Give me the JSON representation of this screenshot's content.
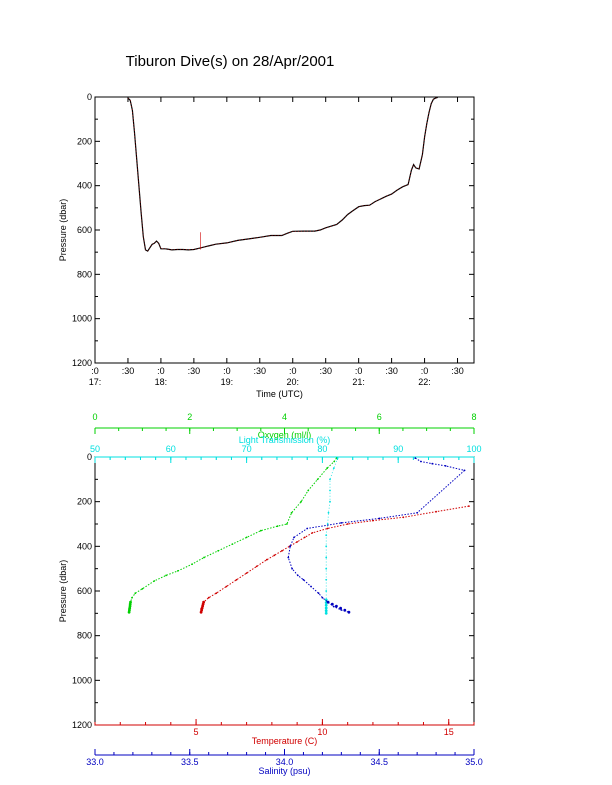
{
  "chart_data": [
    {
      "type": "line",
      "title": "Tiburon Dive(s) on 28/Apr/2001",
      "xlabel": "Time (UTC)",
      "ylabel": "Pressure (dbar)",
      "xlim": [
        "17:00",
        "22:45"
      ],
      "ylim": [
        1200,
        0
      ],
      "x_tick_labels_top": [
        ":0",
        ":30",
        ":0",
        ":30",
        ":0",
        ":30",
        ":0",
        ":30",
        ":0",
        ":30",
        ":0",
        ":30"
      ],
      "x_tick_labels_bottom": [
        "17:",
        "18:",
        "19:",
        "20:",
        "21:",
        "22:"
      ],
      "y_tick_labels": [
        "0",
        "200",
        "400",
        "600",
        "800",
        "1000",
        "1200"
      ],
      "grid": false,
      "series": [
        {
          "x": [
            "17:30",
            "17:32",
            "17:34",
            "17:36",
            "17:38",
            "17:40",
            "17:42",
            "17:44",
            "17:46",
            "17:48",
            "17:50",
            "17:52",
            "17:54",
            "17:56",
            "17:58",
            "18:00",
            "18:02",
            "18:04",
            "18:06",
            "18:08",
            "18:10",
            "18:15",
            "18:20",
            "18:25",
            "18:30",
            "18:35",
            "18:40",
            "18:45",
            "18:50",
            "19:00",
            "19:10",
            "19:20",
            "19:30",
            "19:40",
            "19:50",
            "19:55",
            "20:00",
            "20:10",
            "20:20",
            "20:25",
            "20:30",
            "20:40",
            "20:45",
            "20:50",
            "20:55",
            "21:00",
            "21:05",
            "21:10",
            "21:15",
            "21:20",
            "21:25",
            "21:30",
            "21:35",
            "21:40",
            "21:45",
            "21:48",
            "21:50",
            "21:52",
            "21:55",
            "21:58",
            "22:00",
            "22:02",
            "22:04",
            "22:06",
            "22:08",
            "22:10",
            "22:12"
          ],
          "y": [
            5,
            15,
            60,
            160,
            280,
            400,
            520,
            630,
            690,
            695,
            680,
            665,
            660,
            650,
            660,
            685,
            685,
            685,
            686,
            688,
            690,
            688,
            688,
            690,
            688,
            682,
            676,
            670,
            664,
            658,
            647,
            640,
            633,
            625,
            625,
            615,
            606,
            605,
            605,
            600,
            590,
            575,
            555,
            530,
            512,
            495,
            490,
            488,
            472,
            460,
            448,
            438,
            420,
            405,
            395,
            330,
            305,
            320,
            325,
            260,
            180,
            120,
            70,
            30,
            10,
            5,
            2
          ]
        }
      ]
    },
    {
      "type": "scatter",
      "ylabel": "Pressure (dbar)",
      "ylim": [
        1200,
        0
      ],
      "y_tick_labels": [
        "0",
        "200",
        "400",
        "600",
        "800",
        "1000",
        "1200"
      ],
      "grid": false,
      "x_axes": [
        {
          "label": "Oxygen (ml/l)",
          "color": "#00d000",
          "range": [
            0,
            8
          ],
          "tick_labels": [
            "0",
            "2",
            "4",
            "6",
            "8"
          ]
        },
        {
          "label": "Light Transmission (%)",
          "color": "#00e0e0",
          "range": [
            50,
            100
          ],
          "tick_labels": [
            "50",
            "60",
            "70",
            "80",
            "90",
            "100"
          ]
        },
        {
          "label": "Temperature (C)",
          "color": "#d00000",
          "range": [
            1,
            16
          ],
          "tick_labels": [
            "5",
            "10",
            "15"
          ]
        },
        {
          "label": "Salinity (psu)",
          "color": "#0000c0",
          "range": [
            33.0,
            35.0
          ],
          "tick_labels": [
            "33.0",
            "33.5",
            "34.0",
            "34.5",
            "35.0"
          ]
        }
      ],
      "series": [
        {
          "name": "Oxygen (ml/l)",
          "x": [
            5.1,
            5.05,
            4.9,
            4.7,
            4.5,
            4.35,
            4.15,
            4.05,
            3.85,
            3.5,
            3.2,
            2.9,
            2.6,
            2.3,
            2.05,
            1.75,
            1.5,
            1.25,
            1.0,
            0.85,
            0.78,
            0.75,
            0.74,
            0.72,
            0.72
          ],
          "y": [
            5,
            20,
            50,
            100,
            150,
            200,
            250,
            300,
            310,
            330,
            360,
            390,
            420,
            450,
            480,
            510,
            530,
            555,
            590,
            610,
            630,
            650,
            665,
            680,
            695
          ]
        },
        {
          "name": "Light Transmission (%)",
          "x": [
            82,
            81.5,
            81,
            81,
            81,
            80.8,
            80.7,
            80.5,
            80.5,
            80.5,
            80.5,
            80.5,
            80.5,
            80.5,
            80.5,
            80.5,
            80.5
          ],
          "y": [
            5,
            50,
            100,
            150,
            200,
            250,
            300,
            350,
            400,
            450,
            500,
            550,
            600,
            640,
            660,
            680,
            700
          ]
        },
        {
          "name": "Temperature (C)",
          "x": [
            15.8,
            14.5,
            13.2,
            12.0,
            11.0,
            10.2,
            9.6,
            9.3,
            9.0,
            8.7,
            8.4,
            8.1,
            7.8,
            7.4,
            7.0,
            6.6,
            6.2,
            5.8,
            5.5,
            5.3,
            5.25,
            5.2,
            5.2
          ],
          "y": [
            220,
            245,
            270,
            285,
            300,
            320,
            340,
            360,
            380,
            400,
            420,
            440,
            460,
            490,
            520,
            550,
            580,
            610,
            630,
            650,
            665,
            680,
            695
          ]
        },
        {
          "name": "Salinity (psu)",
          "x": [
            34.69,
            34.72,
            34.78,
            34.85,
            34.95,
            34.7,
            34.5,
            34.3,
            34.12,
            34.05,
            34.03,
            34.02,
            34.04,
            34.07,
            34.1,
            34.14,
            34.18,
            34.2,
            34.23,
            34.26,
            34.3,
            34.34
          ],
          "y": [
            5,
            20,
            30,
            40,
            60,
            250,
            275,
            295,
            320,
            360,
            400,
            450,
            500,
            530,
            550,
            580,
            610,
            630,
            650,
            670,
            685,
            695
          ]
        }
      ]
    }
  ]
}
